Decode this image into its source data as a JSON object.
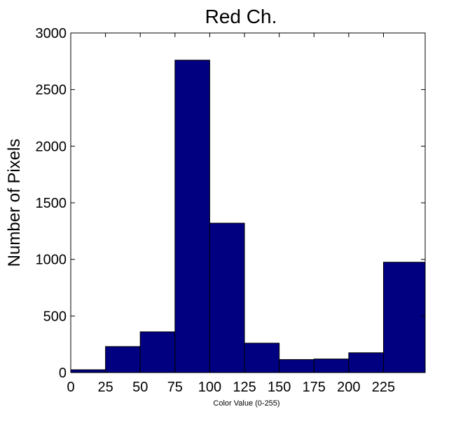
{
  "chart_data": {
    "type": "bar",
    "title": "Red Ch.",
    "xlabel": "Color Value (0-255)",
    "ylabel": "Number of Pixels",
    "xlim": [
      0,
      255
    ],
    "ylim": [
      0,
      3000
    ],
    "xticks": [
      0,
      25,
      50,
      75,
      100,
      125,
      150,
      175,
      200,
      225
    ],
    "yticks": [
      0,
      500,
      1000,
      1500,
      2000,
      2500,
      3000
    ],
    "bins": [
      {
        "start": 0,
        "end": 25,
        "value": 25
      },
      {
        "start": 25,
        "end": 50,
        "value": 230
      },
      {
        "start": 50,
        "end": 75,
        "value": 360
      },
      {
        "start": 75,
        "end": 100,
        "value": 2760
      },
      {
        "start": 100,
        "end": 125,
        "value": 1320
      },
      {
        "start": 125,
        "end": 150,
        "value": 260
      },
      {
        "start": 150,
        "end": 175,
        "value": 115
      },
      {
        "start": 175,
        "end": 200,
        "value": 120
      },
      {
        "start": 200,
        "end": 225,
        "value": 175
      },
      {
        "start": 225,
        "end": 255,
        "value": 975
      }
    ],
    "bar_color": "#000080",
    "edge_color": "#000000",
    "grid": false,
    "legend": "none"
  }
}
